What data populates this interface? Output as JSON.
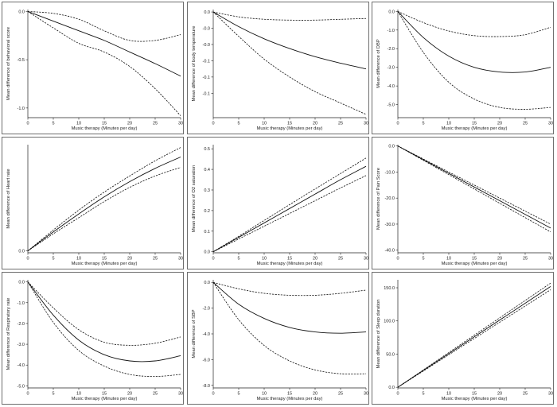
{
  "chart_data": [
    {
      "type": "line",
      "xlabel": "Music therapy (Minutes per day)",
      "ylabel": "Mean difference of behavioral score",
      "xlim": [
        0,
        30
      ],
      "ylim": [
        -1.1,
        0.02
      ],
      "xticks": [
        0,
        5,
        10,
        15,
        20,
        25,
        30
      ],
      "yticks": [
        0,
        -0.5,
        -1.0
      ],
      "ytick_labels": [
        "0.0",
        "-0.5",
        "-1.0"
      ],
      "x": [
        0,
        5,
        10,
        15,
        20,
        25,
        30
      ],
      "series": [
        {
          "style": "solid",
          "values": [
            0,
            -0.1,
            -0.2,
            -0.3,
            -0.42,
            -0.54,
            -0.67
          ]
        },
        {
          "style": "dashed",
          "values": [
            0,
            -0.02,
            -0.08,
            -0.2,
            -0.3,
            -0.3,
            -0.24
          ]
        },
        {
          "style": "dashed",
          "values": [
            0,
            -0.17,
            -0.33,
            -0.42,
            -0.57,
            -0.8,
            -1.08
          ]
        }
      ]
    },
    {
      "type": "line",
      "xlabel": "Music therapy (Minutes per day)",
      "ylabel": "Mean difference of body temperature",
      "xlim": [
        0,
        30
      ],
      "ylim": [
        -0.13,
        0.003
      ],
      "xticks": [
        0,
        5,
        10,
        15,
        20,
        25,
        30
      ],
      "yticks": [
        0,
        -0.02,
        -0.04,
        -0.06,
        -0.08,
        -0.1
      ],
      "ytick_labels": [
        "0.0",
        "-0.0",
        "-0.0",
        "-0.1",
        "-0.1",
        "-0.1"
      ],
      "x": [
        0,
        5,
        10,
        15,
        20,
        25,
        30
      ],
      "series": [
        {
          "style": "solid",
          "values": [
            0,
            -0.018,
            -0.033,
            -0.045,
            -0.055,
            -0.063,
            -0.07
          ]
        },
        {
          "style": "dashed",
          "values": [
            0,
            -0.006,
            -0.009,
            -0.01,
            -0.01,
            -0.009,
            -0.008
          ]
        },
        {
          "style": "dashed",
          "values": [
            0,
            -0.03,
            -0.058,
            -0.08,
            -0.098,
            -0.112,
            -0.126
          ]
        }
      ]
    },
    {
      "type": "line",
      "xlabel": "Music therapy (Minutes per day)",
      "ylabel": "Mean difference of DBP",
      "xlim": [
        0,
        30
      ],
      "ylim": [
        -5.7,
        0.1
      ],
      "xticks": [
        0,
        5,
        10,
        15,
        20,
        25,
        30
      ],
      "yticks": [
        0,
        -1,
        -2,
        -3,
        -4,
        -5
      ],
      "ytick_labels": [
        "0.0",
        "-1.0",
        "-2.0",
        "-3.0",
        "-4.0",
        "-5.0"
      ],
      "x": [
        0,
        5,
        10,
        15,
        20,
        25,
        30
      ],
      "series": [
        {
          "style": "solid",
          "values": [
            0,
            -1.4,
            -2.4,
            -3.0,
            -3.25,
            -3.25,
            -3.0
          ]
        },
        {
          "style": "dashed",
          "values": [
            0,
            -0.6,
            -1.05,
            -1.3,
            -1.35,
            -1.25,
            -0.85
          ]
        },
        {
          "style": "dashed",
          "values": [
            0,
            -2.2,
            -3.8,
            -4.7,
            -5.15,
            -5.25,
            -5.15
          ]
        }
      ]
    },
    {
      "type": "line",
      "xlabel": "Music therapy (Minutes per day)",
      "ylabel": "Mean difference of Heart rate",
      "xlim": [
        0,
        30
      ],
      "ylim": [
        -0.1,
        5.6
      ],
      "xticks": [
        0,
        5,
        10,
        15,
        20,
        25,
        30
      ],
      "yticks": [
        0
      ],
      "ytick_labels": [
        "0.0"
      ],
      "x": [
        0,
        5,
        10,
        15,
        20,
        25,
        30
      ],
      "series": [
        {
          "style": "solid",
          "values": [
            0,
            1.0,
            1.95,
            2.85,
            3.65,
            4.35,
            4.95
          ]
        },
        {
          "style": "dashed",
          "values": [
            0,
            1.1,
            2.15,
            3.1,
            3.95,
            4.75,
            5.45
          ]
        },
        {
          "style": "dashed",
          "values": [
            0,
            0.9,
            1.75,
            2.6,
            3.35,
            3.95,
            4.4
          ]
        }
      ]
    },
    {
      "type": "line",
      "xlabel": "Music therapy (Minutes per day)",
      "ylabel": "Mean difference of O2 saturation",
      "xlim": [
        0,
        30
      ],
      "ylim": [
        -0.005,
        0.52
      ],
      "xticks": [
        0,
        5,
        10,
        15,
        20,
        25,
        30
      ],
      "yticks": [
        0,
        0.1,
        0.2,
        0.3,
        0.4,
        0.5
      ],
      "ytick_labels": [
        "0.0",
        "0.1",
        "0.2",
        "0.3",
        "0.4",
        "0.5"
      ],
      "x": [
        0,
        5,
        10,
        15,
        20,
        25,
        30
      ],
      "series": [
        {
          "style": "solid",
          "values": [
            0,
            0.07,
            0.14,
            0.21,
            0.28,
            0.35,
            0.415
          ]
        },
        {
          "style": "dashed",
          "values": [
            0,
            0.075,
            0.152,
            0.229,
            0.305,
            0.38,
            0.455
          ]
        },
        {
          "style": "dashed",
          "values": [
            0,
            0.062,
            0.124,
            0.186,
            0.248,
            0.31,
            0.37
          ]
        }
      ]
    },
    {
      "type": "line",
      "xlabel": "Music therapy (Minutes per day)",
      "ylabel": "Mean difference of Pain Score",
      "xlim": [
        0,
        30
      ],
      "ylim": [
        -41,
        0.5
      ],
      "xticks": [
        0,
        5,
        10,
        15,
        20,
        25,
        30
      ],
      "yticks": [
        0,
        -10,
        -20,
        -30,
        -40
      ],
      "ytick_labels": [
        "0.0",
        "-10.0",
        "-20.0",
        "-30.0",
        "-40.0"
      ],
      "x": [
        0,
        30
      ],
      "series": [
        {
          "style": "solid",
          "values": [
            0,
            -31.5
          ]
        },
        {
          "style": "dashed",
          "values": [
            0,
            -30.0
          ]
        },
        {
          "style": "dashed",
          "values": [
            0,
            -33.0
          ]
        }
      ]
    },
    {
      "type": "line",
      "xlabel": "Music therapy (Minutes per day)",
      "ylabel": "Mean difference of Respiratory rate",
      "xlim": [
        0,
        30
      ],
      "ylim": [
        -5.1,
        0.1
      ],
      "xticks": [
        0,
        5,
        10,
        15,
        20,
        25,
        30
      ],
      "yticks": [
        0,
        -1,
        -2,
        -3,
        -4,
        -5
      ],
      "ytick_labels": [
        "0.0",
        "-1.0",
        "-2.0",
        "-3.0",
        "-4.0",
        "-5.0"
      ],
      "x": [
        0,
        5,
        10,
        15,
        20,
        25,
        30
      ],
      "series": [
        {
          "style": "solid",
          "values": [
            0,
            -1.6,
            -2.8,
            -3.5,
            -3.8,
            -3.8,
            -3.55
          ]
        },
        {
          "style": "dashed",
          "values": [
            0,
            -1.25,
            -2.3,
            -2.9,
            -3.05,
            -2.95,
            -2.65
          ]
        },
        {
          "style": "dashed",
          "values": [
            0,
            -1.95,
            -3.3,
            -4.05,
            -4.45,
            -4.55,
            -4.45
          ]
        }
      ]
    },
    {
      "type": "line",
      "xlabel": "Music therapy (Minutes per day)",
      "ylabel": "Mean difference of SBP",
      "xlim": [
        0,
        30
      ],
      "ylim": [
        -8.2,
        0.2
      ],
      "xticks": [
        0,
        5,
        10,
        15,
        20,
        25,
        30
      ],
      "yticks": [
        0,
        -2,
        -4,
        -6,
        -8
      ],
      "ytick_labels": [
        "0.0",
        "-2.0",
        "-4.0",
        "-6.0",
        "-8.0"
      ],
      "x": [
        0,
        5,
        10,
        15,
        20,
        25,
        30
      ],
      "series": [
        {
          "style": "solid",
          "values": [
            0,
            -1.7,
            -2.8,
            -3.5,
            -3.85,
            -3.95,
            -3.85
          ]
        },
        {
          "style": "dashed",
          "values": [
            0,
            -0.5,
            -0.85,
            -1.0,
            -1.0,
            -0.85,
            -0.6
          ]
        },
        {
          "style": "dashed",
          "values": [
            0,
            -2.9,
            -4.9,
            -6.1,
            -6.8,
            -7.1,
            -7.1
          ]
        }
      ]
    },
    {
      "type": "line",
      "xlabel": "Music therapy (Minutes per day)",
      "ylabel": "Mean difference of Sleep duration",
      "xlim": [
        0,
        30
      ],
      "ylim": [
        -1,
        162
      ],
      "xticks": [
        0,
        5,
        10,
        15,
        20,
        25,
        30
      ],
      "yticks": [
        0,
        50,
        100,
        150
      ],
      "ytick_labels": [
        "0.0",
        "50.0",
        "100.0",
        "150.0"
      ],
      "x": [
        0,
        30
      ],
      "series": [
        {
          "style": "solid",
          "values": [
            0,
            152
          ]
        },
        {
          "style": "dashed",
          "values": [
            0,
            157
          ]
        },
        {
          "style": "dashed",
          "values": [
            0,
            147
          ]
        }
      ]
    }
  ]
}
